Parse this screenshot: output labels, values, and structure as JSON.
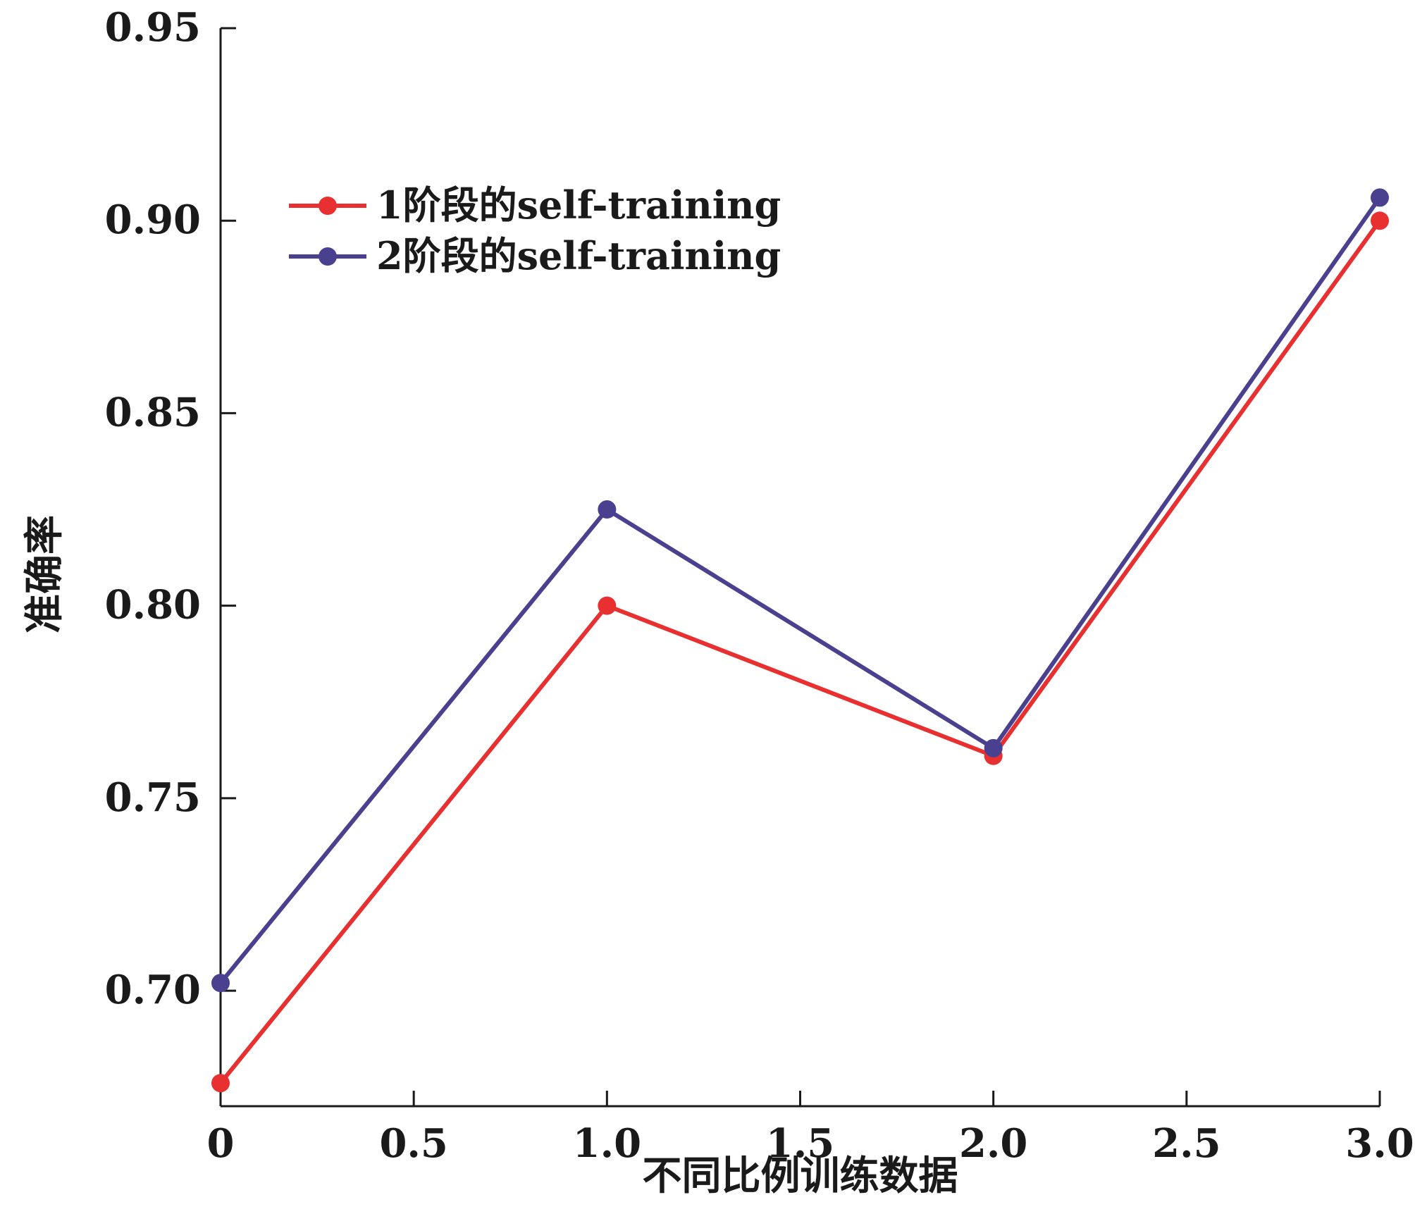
{
  "chart_data": {
    "type": "line",
    "title": "",
    "xlabel": "不同比例训练数据",
    "ylabel": "准确率",
    "xlim": [
      0,
      3.0
    ],
    "ylim": [
      0.67,
      0.95
    ],
    "x_ticks": [
      0,
      0.5,
      1.0,
      1.5,
      2.0,
      2.5,
      3.0
    ],
    "x_tick_labels": [
      "0",
      "0.5",
      "1.0",
      "1.5",
      "2.0",
      "2.5",
      "3.0"
    ],
    "y_ticks": [
      0.7,
      0.75,
      0.8,
      0.85,
      0.9,
      0.95
    ],
    "y_tick_labels": [
      "0.70",
      "0.75",
      "0.80",
      "0.85",
      "0.90",
      "0.95"
    ],
    "x": [
      0,
      1.0,
      2.0,
      3.0
    ],
    "series": [
      {
        "name": "1阶段的self-training",
        "color": "#e83030",
        "values": [
          0.676,
          0.8,
          0.761,
          0.9
        ]
      },
      {
        "name": "2阶段的self-training",
        "color": "#4a4090",
        "values": [
          0.702,
          0.825,
          0.763,
          0.906
        ]
      }
    ],
    "legend_position": "upper-left",
    "grid": false
  }
}
